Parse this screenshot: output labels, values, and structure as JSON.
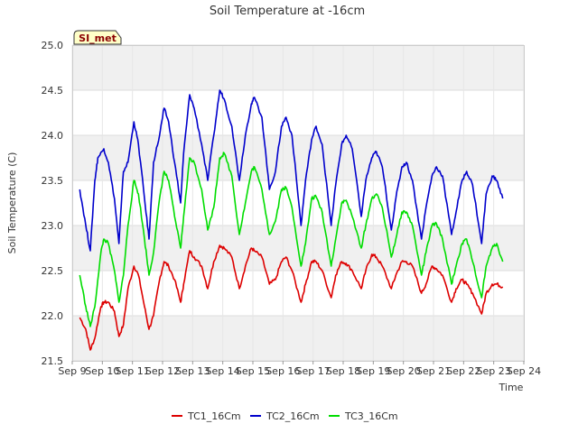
{
  "chart_data": {
    "type": "line",
    "title": "Soil Temperature at -16cm",
    "xlabel": "Time",
    "ylabel": "Soil Temperature (C)",
    "badge": "SI_met",
    "xlim": [
      9,
      24
    ],
    "ylim": [
      21.5,
      25.0
    ],
    "xticks": [
      {
        "value": 9,
        "label": "Sep 9"
      },
      {
        "value": 10,
        "label": "Sep 10"
      },
      {
        "value": 11,
        "label": "Sep 11"
      },
      {
        "value": 12,
        "label": "Sep 12"
      },
      {
        "value": 13,
        "label": "Sep 13"
      },
      {
        "value": 14,
        "label": "Sep 14"
      },
      {
        "value": 15,
        "label": "Sep 15"
      },
      {
        "value": 16,
        "label": "Sep 16"
      },
      {
        "value": 17,
        "label": "Sep 17"
      },
      {
        "value": 18,
        "label": "Sep 18"
      },
      {
        "value": 19,
        "label": "Sep 19"
      },
      {
        "value": 20,
        "label": "Sep 20"
      },
      {
        "value": 21,
        "label": "Sep 21"
      },
      {
        "value": 22,
        "label": "Sep 22"
      },
      {
        "value": 23,
        "label": "Sep 23"
      },
      {
        "value": 24,
        "label": "Sep 24"
      }
    ],
    "yticks": [
      {
        "value": 21.5,
        "label": "21.5"
      },
      {
        "value": 22.0,
        "label": "22.0"
      },
      {
        "value": 22.5,
        "label": "22.5"
      },
      {
        "value": 23.0,
        "label": "23.0"
      },
      {
        "value": 23.5,
        "label": "23.5"
      },
      {
        "value": 24.0,
        "label": "24.0"
      },
      {
        "value": 24.5,
        "label": "24.5"
      },
      {
        "value": 25.0,
        "label": "25.0"
      }
    ],
    "series": [
      {
        "name": "TC1_16Cm",
        "color": "#dd0000",
        "x": [
          9.25,
          9.45,
          9.6,
          9.75,
          9.95,
          10.05,
          10.2,
          10.4,
          10.55,
          10.7,
          10.85,
          11.05,
          11.2,
          11.4,
          11.55,
          11.7,
          11.9,
          12.05,
          12.2,
          12.4,
          12.6,
          12.7,
          12.9,
          13.05,
          13.3,
          13.5,
          13.7,
          13.9,
          14.05,
          14.3,
          14.55,
          14.75,
          14.95,
          15.05,
          15.3,
          15.55,
          15.75,
          15.95,
          16.1,
          16.3,
          16.6,
          16.75,
          16.95,
          17.1,
          17.3,
          17.6,
          17.75,
          17.95,
          18.1,
          18.3,
          18.6,
          18.75,
          18.95,
          19.1,
          19.3,
          19.6,
          19.75,
          19.95,
          20.1,
          20.3,
          20.6,
          20.75,
          20.95,
          21.1,
          21.3,
          21.6,
          21.75,
          21.95,
          22.1,
          22.3,
          22.6,
          22.75,
          22.95,
          23.1,
          23.3
        ],
        "values": [
          21.98,
          21.85,
          21.62,
          21.75,
          22.1,
          22.15,
          22.15,
          22.05,
          21.77,
          21.9,
          22.3,
          22.55,
          22.45,
          22.1,
          21.85,
          22.0,
          22.4,
          22.6,
          22.55,
          22.4,
          22.15,
          22.35,
          22.72,
          22.65,
          22.55,
          22.3,
          22.6,
          22.78,
          22.75,
          22.65,
          22.3,
          22.55,
          22.75,
          22.72,
          22.65,
          22.35,
          22.4,
          22.6,
          22.65,
          22.5,
          22.15,
          22.35,
          22.6,
          22.6,
          22.5,
          22.2,
          22.45,
          22.6,
          22.58,
          22.5,
          22.3,
          22.5,
          22.68,
          22.65,
          22.55,
          22.3,
          22.45,
          22.6,
          22.6,
          22.55,
          22.25,
          22.35,
          22.55,
          22.52,
          22.45,
          22.15,
          22.3,
          22.4,
          22.35,
          22.25,
          22.02,
          22.25,
          22.35,
          22.35,
          22.32
        ]
      },
      {
        "name": "TC2_16Cm",
        "color": "#0000cc",
        "x": [
          9.25,
          9.45,
          9.6,
          9.75,
          9.85,
          10.05,
          10.2,
          10.4,
          10.55,
          10.7,
          10.85,
          11.05,
          11.2,
          11.4,
          11.55,
          11.7,
          11.9,
          12.05,
          12.2,
          12.4,
          12.6,
          12.7,
          12.9,
          13.05,
          13.3,
          13.5,
          13.7,
          13.9,
          14.05,
          14.3,
          14.55,
          14.75,
          14.95,
          15.05,
          15.3,
          15.55,
          15.75,
          15.95,
          16.1,
          16.3,
          16.6,
          16.75,
          16.95,
          17.1,
          17.3,
          17.6,
          17.75,
          17.95,
          18.1,
          18.3,
          18.6,
          18.75,
          18.95,
          19.1,
          19.3,
          19.6,
          19.75,
          19.95,
          20.1,
          20.3,
          20.6,
          20.75,
          20.95,
          21.1,
          21.3,
          21.6,
          21.75,
          21.95,
          22.1,
          22.3,
          22.6,
          22.75,
          22.95,
          23.1,
          23.3
        ],
        "values": [
          23.4,
          23.0,
          22.72,
          23.5,
          23.75,
          23.85,
          23.7,
          23.3,
          22.8,
          23.6,
          23.7,
          24.15,
          23.9,
          23.3,
          22.85,
          23.7,
          24.0,
          24.3,
          24.15,
          23.7,
          23.25,
          23.8,
          24.45,
          24.3,
          23.9,
          23.5,
          24.0,
          24.5,
          24.4,
          24.1,
          23.5,
          24.0,
          24.35,
          24.42,
          24.2,
          23.4,
          23.6,
          24.1,
          24.2,
          24.0,
          23.0,
          23.5,
          23.95,
          24.1,
          23.9,
          23.0,
          23.45,
          23.9,
          24.0,
          23.85,
          23.1,
          23.5,
          23.75,
          23.82,
          23.65,
          22.95,
          23.3,
          23.65,
          23.7,
          23.5,
          22.85,
          23.2,
          23.55,
          23.65,
          23.55,
          22.9,
          23.15,
          23.5,
          23.6,
          23.45,
          22.8,
          23.35,
          23.55,
          23.5,
          23.3
        ]
      },
      {
        "name": "TC3_16Cm",
        "color": "#00dd00",
        "x": [
          9.25,
          9.45,
          9.6,
          9.75,
          9.95,
          10.05,
          10.2,
          10.4,
          10.55,
          10.7,
          10.85,
          11.05,
          11.2,
          11.4,
          11.55,
          11.7,
          11.9,
          12.05,
          12.2,
          12.4,
          12.6,
          12.7,
          12.9,
          13.05,
          13.3,
          13.5,
          13.7,
          13.9,
          14.05,
          14.3,
          14.55,
          14.75,
          14.95,
          15.05,
          15.3,
          15.55,
          15.75,
          15.95,
          16.1,
          16.3,
          16.6,
          16.75,
          16.95,
          17.1,
          17.3,
          17.6,
          17.75,
          17.95,
          18.1,
          18.3,
          18.6,
          18.75,
          18.95,
          19.1,
          19.3,
          19.6,
          19.75,
          19.95,
          20.1,
          20.3,
          20.6,
          20.75,
          20.95,
          21.1,
          21.3,
          21.6,
          21.75,
          21.95,
          22.1,
          22.3,
          22.6,
          22.75,
          22.95,
          23.1,
          23.3
        ],
        "values": [
          22.45,
          22.1,
          21.88,
          22.1,
          22.7,
          22.85,
          22.8,
          22.5,
          22.15,
          22.45,
          23.0,
          23.5,
          23.35,
          22.85,
          22.45,
          22.7,
          23.3,
          23.6,
          23.5,
          23.1,
          22.75,
          23.1,
          23.75,
          23.7,
          23.4,
          22.95,
          23.2,
          23.75,
          23.8,
          23.55,
          22.9,
          23.25,
          23.6,
          23.65,
          23.4,
          22.9,
          23.05,
          23.4,
          23.42,
          23.2,
          22.55,
          22.8,
          23.3,
          23.32,
          23.15,
          22.55,
          22.85,
          23.25,
          23.28,
          23.1,
          22.75,
          23.0,
          23.3,
          23.35,
          23.2,
          22.65,
          22.85,
          23.15,
          23.15,
          23.0,
          22.45,
          22.7,
          23.0,
          23.02,
          22.85,
          22.35,
          22.55,
          22.8,
          22.85,
          22.6,
          22.2,
          22.55,
          22.75,
          22.8,
          22.6
        ]
      }
    ]
  }
}
